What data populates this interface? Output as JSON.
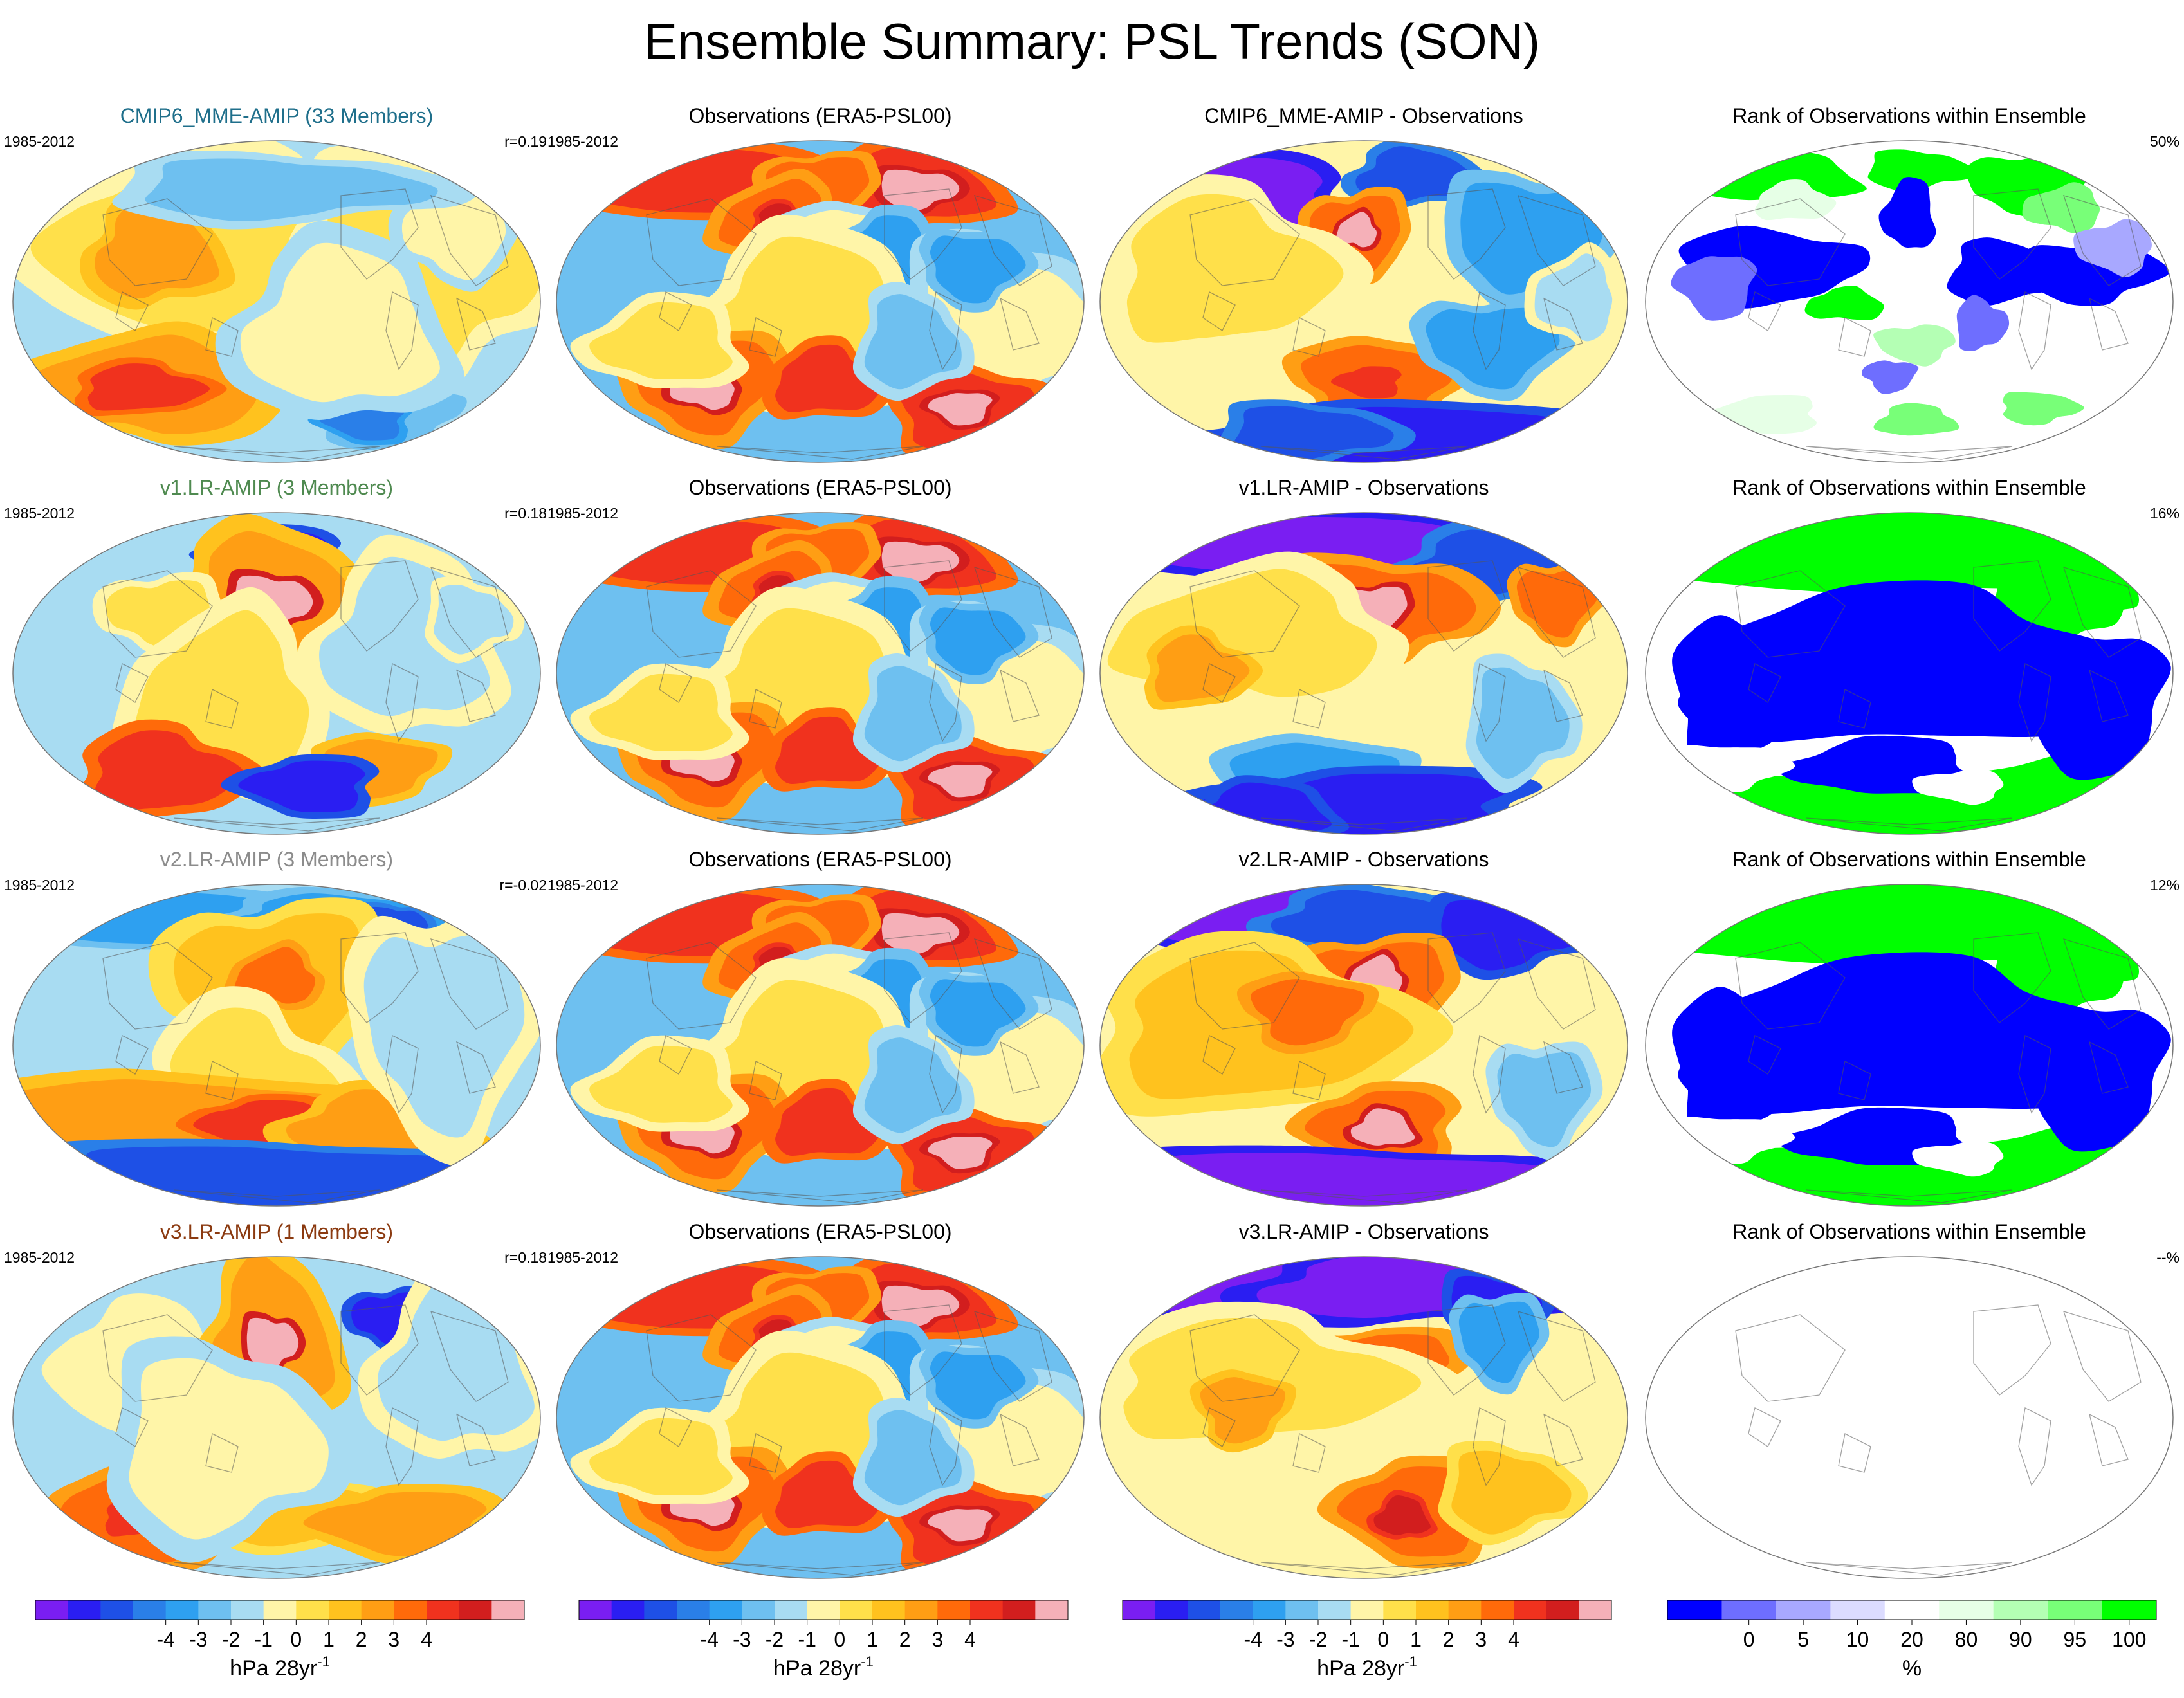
{
  "title": "Ensemble Summary: PSL Trends (SON)",
  "rows": [
    {
      "model": "CMIP6_MME-AMIP (33 Members)",
      "model_color": "#1f6f8b",
      "years": "1985-2012",
      "r": "r=0.19",
      "obs_title": "Observations (ERA5-PSL00)",
      "diff_title": "CMIP6_MME-AMIP - Observations",
      "rank_title": "Rank of Observations within Ensemble",
      "rank_pct": "50%",
      "rank_style": "patchy"
    },
    {
      "model": "v1.LR-AMIP (3 Members)",
      "model_color": "#4f8a50",
      "years": "1985-2012",
      "r": "r=0.18",
      "obs_title": "Observations (ERA5-PSL00)",
      "diff_title": "v1.LR-AMIP - Observations",
      "rank_title": "Rank of Observations within Ensemble",
      "rank_pct": "16%",
      "rank_style": "bimodal"
    },
    {
      "model": "v2.LR-AMIP (3 Members)",
      "model_color": "#8c8c8c",
      "years": "1985-2012",
      "r": "r=-0.02",
      "obs_title": "Observations (ERA5-PSL00)",
      "diff_title": "v2.LR-AMIP - Observations",
      "rank_title": "Rank of Observations within Ensemble",
      "rank_pct": "12%",
      "rank_style": "bimodal"
    },
    {
      "model": "v3.LR-AMIP (1 Members)",
      "model_color": "#8b3a10",
      "years": "1985-2012",
      "r": "r=0.18",
      "obs_title": "Observations (ERA5-PSL00)",
      "diff_title": "v3.LR-AMIP - Observations",
      "rank_title": "Rank of Observations within Ensemble",
      "rank_pct": "--%",
      "rank_style": "blank"
    }
  ],
  "trend_colorbar": {
    "colors": [
      "#7a1ef2",
      "#2a1ef2",
      "#1e50e6",
      "#2a7fe8",
      "#2ea0f0",
      "#6ec0f0",
      "#a8dcf2",
      "#fff5a8",
      "#ffe04a",
      "#ffc21e",
      "#ff9e14",
      "#ff6a0a",
      "#f0321e",
      "#d21e1e",
      "#f5b0b8"
    ],
    "tick_labels": [
      "-4",
      "-3",
      "-2",
      "-1",
      "0",
      "1",
      "2",
      "3",
      "4"
    ],
    "unit": "hPa 28yr",
    "unit_sup": "-1"
  },
  "rank_colorbar": {
    "colors": [
      "#0000ff",
      "#6e6eff",
      "#a8a8ff",
      "#dcdcff",
      "#ffffff",
      "#e6ffe6",
      "#b4ffb4",
      "#78ff78",
      "#00ff00"
    ],
    "tick_labels": [
      "0",
      "5",
      "10",
      "20",
      "80",
      "90",
      "95",
      "100"
    ],
    "unit": "%"
  }
}
